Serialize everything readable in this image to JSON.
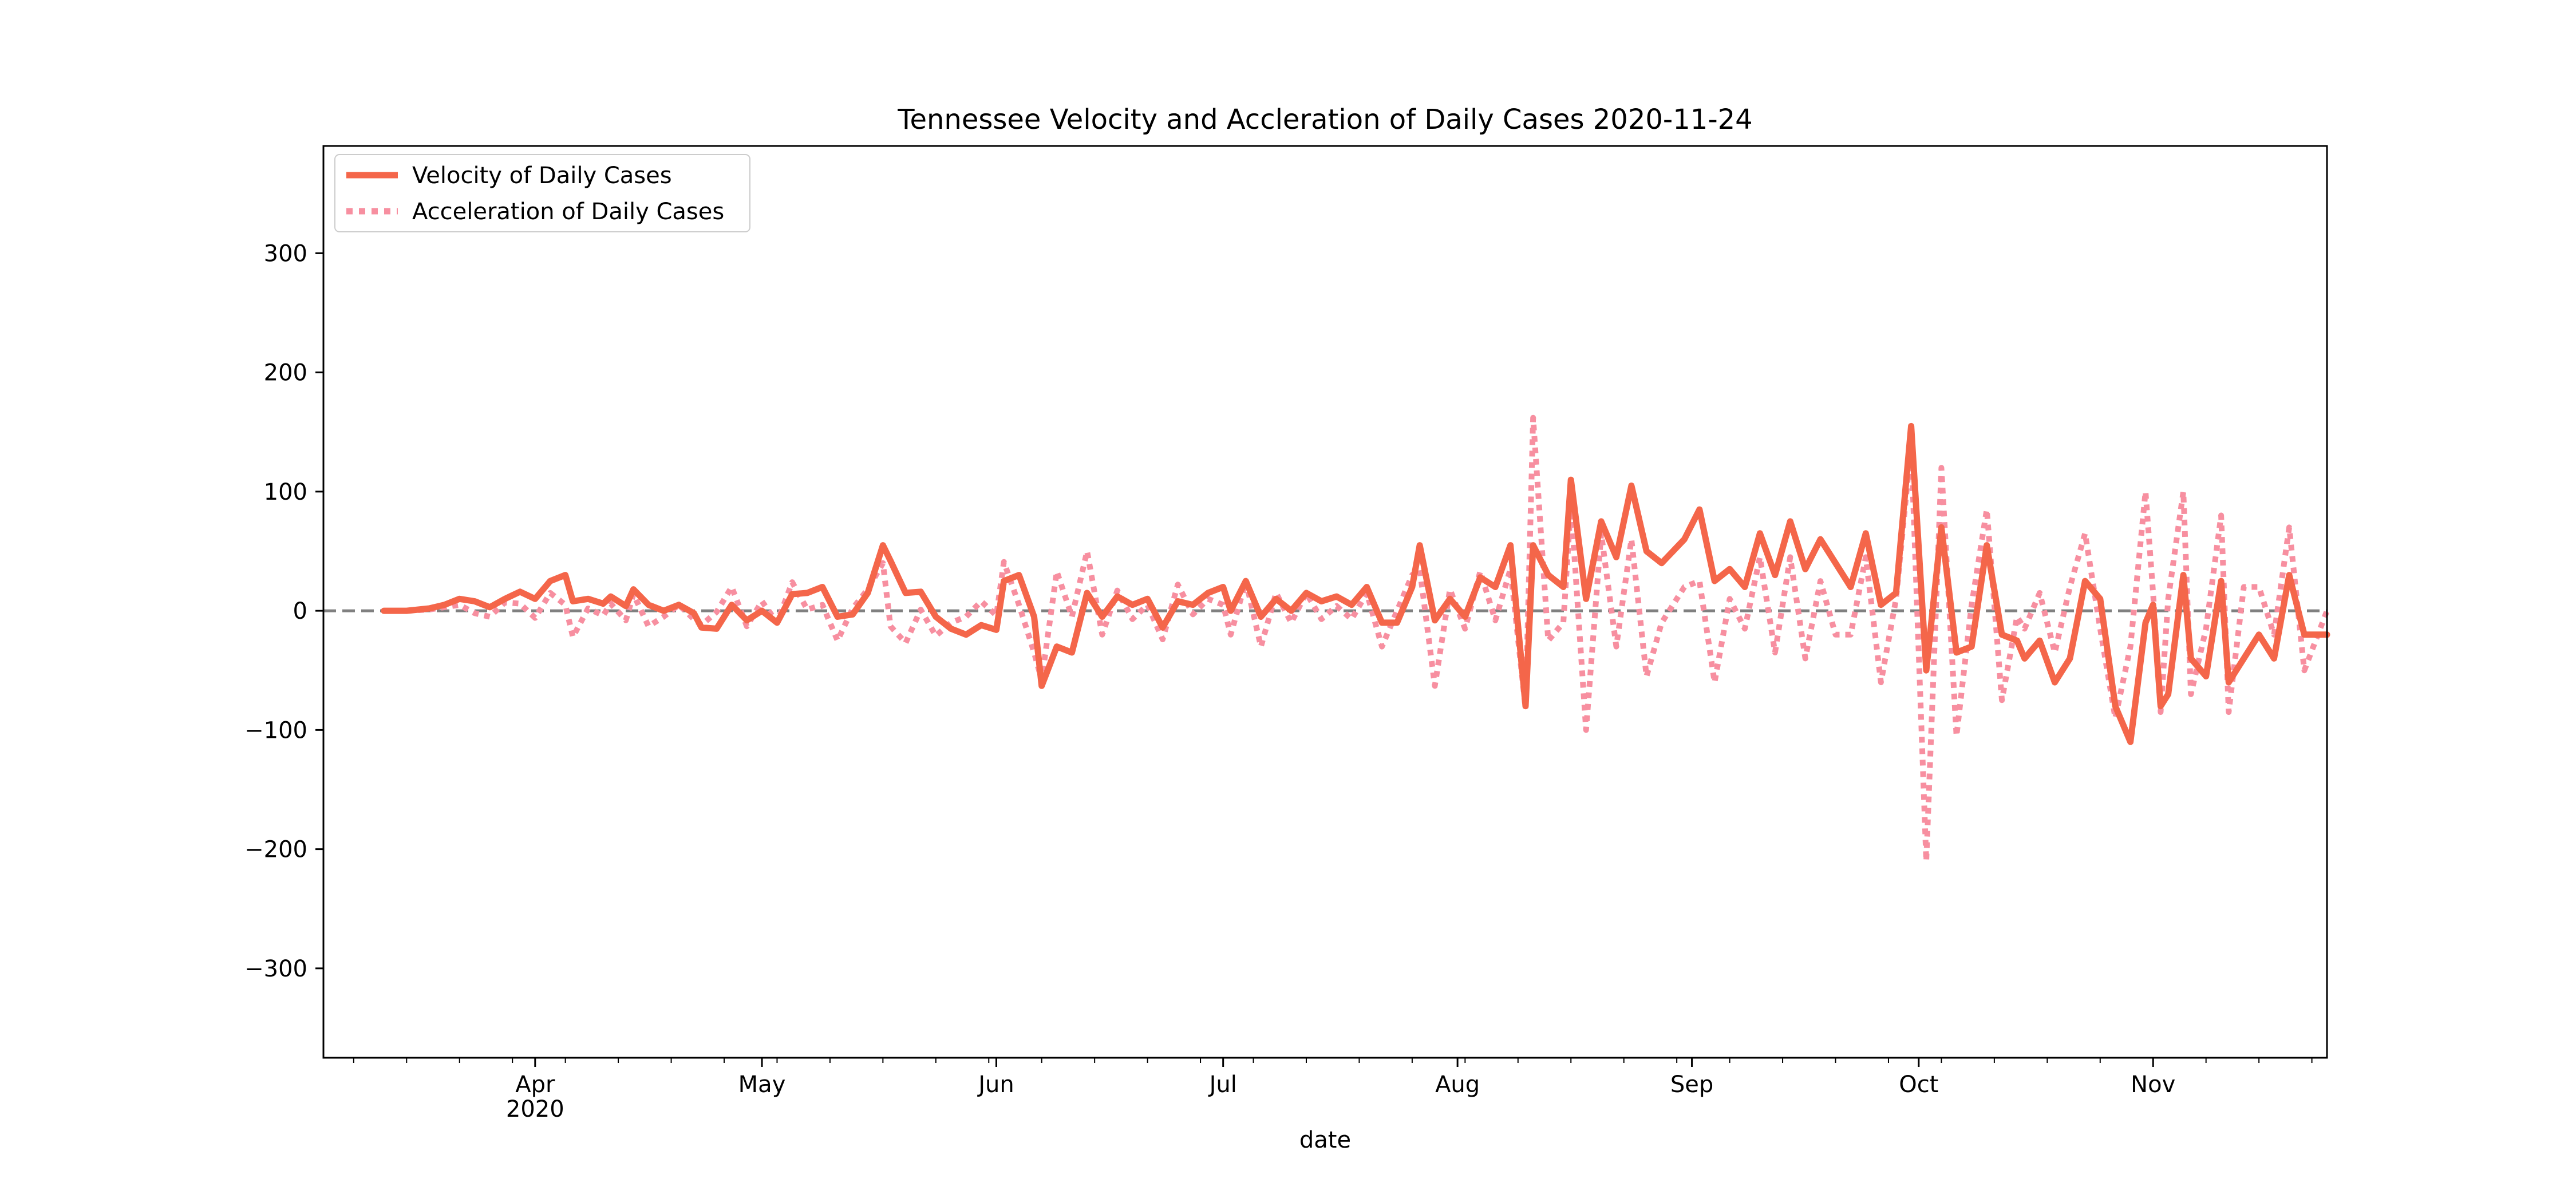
{
  "chart_data": {
    "type": "line",
    "title": "Tennessee Velocity and Accleration of Daily Cases 2020-11-24",
    "xlabel": "date",
    "ylabel": "",
    "x_range": [
      "2020-03-04",
      "2020-11-24"
    ],
    "ylim": [
      -375,
      390
    ],
    "yticks": [
      -300,
      -200,
      -100,
      0,
      100,
      200,
      300
    ],
    "ytick_labels": [
      "−300",
      "−200",
      "−100",
      "0",
      "100",
      "200",
      "300"
    ],
    "xticks": [
      {
        "date": "2020-04-01",
        "label": "Apr",
        "sublabel": "2020"
      },
      {
        "date": "2020-05-01",
        "label": "May",
        "sublabel": ""
      },
      {
        "date": "2020-06-01",
        "label": "Jun",
        "sublabel": ""
      },
      {
        "date": "2020-07-01",
        "label": "Jul",
        "sublabel": ""
      },
      {
        "date": "2020-08-01",
        "label": "Aug",
        "sublabel": ""
      },
      {
        "date": "2020-09-01",
        "label": "Sep",
        "sublabel": ""
      },
      {
        "date": "2020-10-01",
        "label": "Oct",
        "sublabel": ""
      },
      {
        "date": "2020-11-01",
        "label": "Nov",
        "sublabel": ""
      }
    ],
    "minor_ticks": "weekly",
    "zero_line": {
      "style": "dashed",
      "color": "#808080"
    },
    "legend_position": "top-left",
    "grid": false,
    "series": [
      {
        "name": "Velocity of Daily Cases",
        "style": "solid",
        "color": "#f4664a",
        "points": [
          [
            "2020-03-12",
            0
          ],
          [
            "2020-03-15",
            0
          ],
          [
            "2020-03-18",
            2
          ],
          [
            "2020-03-20",
            5
          ],
          [
            "2020-03-22",
            10
          ],
          [
            "2020-03-24",
            8
          ],
          [
            "2020-03-26",
            3
          ],
          [
            "2020-03-28",
            10
          ],
          [
            "2020-03-30",
            16
          ],
          [
            "2020-04-01",
            10
          ],
          [
            "2020-04-03",
            25
          ],
          [
            "2020-04-05",
            30
          ],
          [
            "2020-04-06",
            8
          ],
          [
            "2020-04-08",
            10
          ],
          [
            "2020-04-10",
            6
          ],
          [
            "2020-04-11",
            12
          ],
          [
            "2020-04-13",
            4
          ],
          [
            "2020-04-14",
            18
          ],
          [
            "2020-04-16",
            5
          ],
          [
            "2020-04-18",
            0
          ],
          [
            "2020-04-20",
            5
          ],
          [
            "2020-04-22",
            -2
          ],
          [
            "2020-04-23",
            -14
          ],
          [
            "2020-04-25",
            -15
          ],
          [
            "2020-04-27",
            5
          ],
          [
            "2020-04-29",
            -8
          ],
          [
            "2020-05-01",
            0
          ],
          [
            "2020-05-03",
            -10
          ],
          [
            "2020-05-05",
            14
          ],
          [
            "2020-05-07",
            15
          ],
          [
            "2020-05-09",
            20
          ],
          [
            "2020-05-11",
            -5
          ],
          [
            "2020-05-13",
            -3
          ],
          [
            "2020-05-15",
            15
          ],
          [
            "2020-05-17",
            55
          ],
          [
            "2020-05-18",
            42
          ],
          [
            "2020-05-20",
            15
          ],
          [
            "2020-05-22",
            16
          ],
          [
            "2020-05-24",
            -5
          ],
          [
            "2020-05-26",
            -15
          ],
          [
            "2020-05-28",
            -20
          ],
          [
            "2020-05-30",
            -12
          ],
          [
            "2020-06-01",
            -16
          ],
          [
            "2020-06-02",
            25
          ],
          [
            "2020-06-04",
            30
          ],
          [
            "2020-06-06",
            -5
          ],
          [
            "2020-06-07",
            -63
          ],
          [
            "2020-06-09",
            -30
          ],
          [
            "2020-06-11",
            -35
          ],
          [
            "2020-06-13",
            15
          ],
          [
            "2020-06-15",
            -5
          ],
          [
            "2020-06-17",
            12
          ],
          [
            "2020-06-19",
            5
          ],
          [
            "2020-06-21",
            10
          ],
          [
            "2020-06-23",
            -14
          ],
          [
            "2020-06-25",
            8
          ],
          [
            "2020-06-27",
            5
          ],
          [
            "2020-06-29",
            15
          ],
          [
            "2020-07-01",
            20
          ],
          [
            "2020-07-02",
            0
          ],
          [
            "2020-07-04",
            25
          ],
          [
            "2020-07-06",
            -5
          ],
          [
            "2020-07-08",
            10
          ],
          [
            "2020-07-10",
            0
          ],
          [
            "2020-07-12",
            15
          ],
          [
            "2020-07-14",
            8
          ],
          [
            "2020-07-16",
            12
          ],
          [
            "2020-07-18",
            5
          ],
          [
            "2020-07-20",
            20
          ],
          [
            "2020-07-22",
            -10
          ],
          [
            "2020-07-24",
            -10
          ],
          [
            "2020-07-26",
            20
          ],
          [
            "2020-07-27",
            55
          ],
          [
            "2020-07-29",
            -8
          ],
          [
            "2020-07-31",
            10
          ],
          [
            "2020-08-02",
            -5
          ],
          [
            "2020-08-04",
            28
          ],
          [
            "2020-08-06",
            20
          ],
          [
            "2020-08-08",
            55
          ],
          [
            "2020-08-10",
            -80
          ],
          [
            "2020-08-11",
            55
          ],
          [
            "2020-08-13",
            30
          ],
          [
            "2020-08-15",
            20
          ],
          [
            "2020-08-16",
            110
          ],
          [
            "2020-08-18",
            10
          ],
          [
            "2020-08-20",
            75
          ],
          [
            "2020-08-22",
            45
          ],
          [
            "2020-08-24",
            105
          ],
          [
            "2020-08-26",
            50
          ],
          [
            "2020-08-28",
            40
          ],
          [
            "2020-08-31",
            60
          ],
          [
            "2020-09-02",
            85
          ],
          [
            "2020-09-04",
            25
          ],
          [
            "2020-09-06",
            35
          ],
          [
            "2020-09-08",
            20
          ],
          [
            "2020-09-10",
            65
          ],
          [
            "2020-09-12",
            30
          ],
          [
            "2020-09-14",
            75
          ],
          [
            "2020-09-16",
            35
          ],
          [
            "2020-09-18",
            60
          ],
          [
            "2020-09-20",
            40
          ],
          [
            "2020-09-22",
            20
          ],
          [
            "2020-09-24",
            65
          ],
          [
            "2020-09-26",
            5
          ],
          [
            "2020-09-28",
            15
          ],
          [
            "2020-09-30",
            155
          ],
          [
            "2020-10-02",
            -50
          ],
          [
            "2020-10-04",
            70
          ],
          [
            "2020-10-06",
            -35
          ],
          [
            "2020-10-08",
            -30
          ],
          [
            "2020-10-10",
            55
          ],
          [
            "2020-10-12",
            -20
          ],
          [
            "2020-10-14",
            -25
          ],
          [
            "2020-10-15",
            -40
          ],
          [
            "2020-10-17",
            -25
          ],
          [
            "2020-10-19",
            -60
          ],
          [
            "2020-10-21",
            -40
          ],
          [
            "2020-10-23",
            25
          ],
          [
            "2020-10-25",
            10
          ],
          [
            "2020-10-27",
            -80
          ],
          [
            "2020-10-29",
            -110
          ],
          [
            "2020-10-31",
            -10
          ],
          [
            "2020-11-01",
            5
          ],
          [
            "2020-11-02",
            -80
          ],
          [
            "2020-11-03",
            -70
          ],
          [
            "2020-11-05",
            30
          ],
          [
            "2020-11-06",
            -40
          ],
          [
            "2020-11-08",
            -55
          ],
          [
            "2020-11-10",
            25
          ],
          [
            "2020-11-11",
            -60
          ],
          [
            "2020-11-13",
            -40
          ],
          [
            "2020-11-15",
            -20
          ],
          [
            "2020-11-17",
            -40
          ],
          [
            "2020-11-19",
            30
          ],
          [
            "2020-11-21",
            -20
          ],
          [
            "2020-11-24",
            -20
          ]
        ]
      },
      {
        "name": "Acceleration of Daily Cases",
        "style": "dotted",
        "color": "#f78fa0",
        "points": [
          [
            "2020-03-12",
            0
          ],
          [
            "2020-03-15",
            0
          ],
          [
            "2020-03-18",
            1
          ],
          [
            "2020-03-20",
            3
          ],
          [
            "2020-03-22",
            5
          ],
          [
            "2020-03-24",
            -2
          ],
          [
            "2020-03-26",
            -5
          ],
          [
            "2020-03-28",
            7
          ],
          [
            "2020-03-30",
            6
          ],
          [
            "2020-04-01",
            -6
          ],
          [
            "2020-04-03",
            15
          ],
          [
            "2020-04-05",
            5
          ],
          [
            "2020-04-06",
            -22
          ],
          [
            "2020-04-08",
            2
          ],
          [
            "2020-04-10",
            -4
          ],
          [
            "2020-04-11",
            6
          ],
          [
            "2020-04-13",
            -8
          ],
          [
            "2020-04-14",
            14
          ],
          [
            "2020-04-16",
            -13
          ],
          [
            "2020-04-18",
            -5
          ],
          [
            "2020-04-20",
            5
          ],
          [
            "2020-04-22",
            -7
          ],
          [
            "2020-04-23",
            -12
          ],
          [
            "2020-04-25",
            -1
          ],
          [
            "2020-04-27",
            20
          ],
          [
            "2020-04-29",
            -13
          ],
          [
            "2020-05-01",
            8
          ],
          [
            "2020-05-03",
            -10
          ],
          [
            "2020-05-05",
            24
          ],
          [
            "2020-05-07",
            1
          ],
          [
            "2020-05-09",
            5
          ],
          [
            "2020-05-11",
            -25
          ],
          [
            "2020-05-13",
            2
          ],
          [
            "2020-05-15",
            18
          ],
          [
            "2020-05-17",
            40
          ],
          [
            "2020-05-18",
            -13
          ],
          [
            "2020-05-20",
            -27
          ],
          [
            "2020-05-22",
            1
          ],
          [
            "2020-05-24",
            -21
          ],
          [
            "2020-05-26",
            -10
          ],
          [
            "2020-05-28",
            -5
          ],
          [
            "2020-05-30",
            8
          ],
          [
            "2020-06-01",
            -4
          ],
          [
            "2020-06-02",
            41
          ],
          [
            "2020-06-04",
            5
          ],
          [
            "2020-06-06",
            -35
          ],
          [
            "2020-06-07",
            -58
          ],
          [
            "2020-06-09",
            33
          ],
          [
            "2020-06-11",
            -5
          ],
          [
            "2020-06-13",
            50
          ],
          [
            "2020-06-15",
            -20
          ],
          [
            "2020-06-17",
            17
          ],
          [
            "2020-06-19",
            -7
          ],
          [
            "2020-06-21",
            5
          ],
          [
            "2020-06-23",
            -24
          ],
          [
            "2020-06-25",
            22
          ],
          [
            "2020-06-27",
            -3
          ],
          [
            "2020-06-29",
            10
          ],
          [
            "2020-07-01",
            5
          ],
          [
            "2020-07-02",
            -20
          ],
          [
            "2020-07-04",
            25
          ],
          [
            "2020-07-06",
            -30
          ],
          [
            "2020-07-08",
            15
          ],
          [
            "2020-07-10",
            -10
          ],
          [
            "2020-07-12",
            15
          ],
          [
            "2020-07-14",
            -7
          ],
          [
            "2020-07-16",
            4
          ],
          [
            "2020-07-18",
            -7
          ],
          [
            "2020-07-20",
            15
          ],
          [
            "2020-07-22",
            -30
          ],
          [
            "2020-07-24",
            0
          ],
          [
            "2020-07-26",
            30
          ],
          [
            "2020-07-27",
            35
          ],
          [
            "2020-07-29",
            -63
          ],
          [
            "2020-07-31",
            18
          ],
          [
            "2020-08-02",
            -15
          ],
          [
            "2020-08-04",
            33
          ],
          [
            "2020-08-06",
            -8
          ],
          [
            "2020-08-08",
            35
          ],
          [
            "2020-08-10",
            -82
          ],
          [
            "2020-08-11",
            162
          ],
          [
            "2020-08-13",
            -25
          ],
          [
            "2020-08-15",
            -10
          ],
          [
            "2020-08-16",
            90
          ],
          [
            "2020-08-18",
            -100
          ],
          [
            "2020-08-20",
            65
          ],
          [
            "2020-08-22",
            -30
          ],
          [
            "2020-08-24",
            60
          ],
          [
            "2020-08-26",
            -55
          ],
          [
            "2020-08-28",
            -10
          ],
          [
            "2020-08-31",
            20
          ],
          [
            "2020-09-02",
            25
          ],
          [
            "2020-09-04",
            -60
          ],
          [
            "2020-09-06",
            10
          ],
          [
            "2020-09-08",
            -15
          ],
          [
            "2020-09-10",
            45
          ],
          [
            "2020-09-12",
            -35
          ],
          [
            "2020-09-14",
            45
          ],
          [
            "2020-09-16",
            -40
          ],
          [
            "2020-09-18",
            25
          ],
          [
            "2020-09-20",
            -20
          ],
          [
            "2020-09-22",
            -20
          ],
          [
            "2020-09-24",
            45
          ],
          [
            "2020-09-26",
            -60
          ],
          [
            "2020-09-28",
            10
          ],
          [
            "2020-09-30",
            140
          ],
          [
            "2020-10-02",
            -210
          ],
          [
            "2020-10-04",
            120
          ],
          [
            "2020-10-06",
            -105
          ],
          [
            "2020-10-08",
            5
          ],
          [
            "2020-10-10",
            85
          ],
          [
            "2020-10-12",
            -75
          ],
          [
            "2020-10-14",
            -5
          ],
          [
            "2020-10-15",
            -15
          ],
          [
            "2020-10-17",
            15
          ],
          [
            "2020-10-19",
            -35
          ],
          [
            "2020-10-21",
            20
          ],
          [
            "2020-10-23",
            65
          ],
          [
            "2020-10-25",
            -15
          ],
          [
            "2020-10-27",
            -90
          ],
          [
            "2020-10-29",
            -30
          ],
          [
            "2020-10-31",
            100
          ],
          [
            "2020-11-01",
            15
          ],
          [
            "2020-11-02",
            -85
          ],
          [
            "2020-11-03",
            10
          ],
          [
            "2020-11-05",
            100
          ],
          [
            "2020-11-06",
            -70
          ],
          [
            "2020-11-08",
            -15
          ],
          [
            "2020-11-10",
            80
          ],
          [
            "2020-11-11",
            -85
          ],
          [
            "2020-11-13",
            20
          ],
          [
            "2020-11-15",
            20
          ],
          [
            "2020-11-17",
            -20
          ],
          [
            "2020-11-19",
            70
          ],
          [
            "2020-11-21",
            -50
          ],
          [
            "2020-11-24",
            0
          ]
        ]
      }
    ]
  }
}
